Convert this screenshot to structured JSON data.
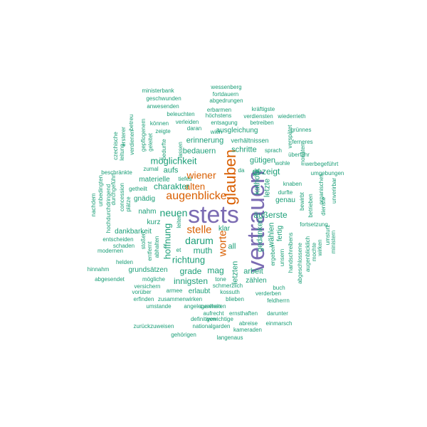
{
  "colors": {
    "primary": "#7b6bb3",
    "secondary": "#d95f02",
    "tertiary": "#1b9e77"
  },
  "words": [
    {
      "text": "stets",
      "color": "primary"
    },
    {
      "text": "vertrauen",
      "color": "primary"
    },
    {
      "text": "glauben",
      "color": "secondary"
    },
    {
      "text": "augenblicke",
      "color": "secondary"
    },
    {
      "text": "stelle",
      "color": "secondary"
    },
    {
      "text": "worte",
      "color": "secondary"
    },
    {
      "text": "wiener",
      "color": "secondary"
    },
    {
      "text": "alten",
      "color": "secondary"
    },
    {
      "text": "neuen",
      "color": "tertiary"
    },
    {
      "text": "hoffnung",
      "color": "tertiary"
    },
    {
      "text": "darum",
      "color": "tertiary"
    },
    {
      "text": "richtung",
      "color": "tertiary"
    },
    {
      "text": "muth",
      "color": "tertiary"
    },
    {
      "text": "charakter",
      "color": "tertiary"
    },
    {
      "text": "möglichkeit",
      "color": "tertiary"
    },
    {
      "text": "gezeigt",
      "color": "tertiary"
    },
    {
      "text": "äußerste",
      "color": "tertiary"
    },
    {
      "text": "innigsten",
      "color": "tertiary"
    },
    {
      "text": "grade",
      "color": "tertiary"
    },
    {
      "text": "mag",
      "color": "tertiary"
    },
    {
      "text": "all",
      "color": "tertiary"
    },
    {
      "text": "letzten",
      "color": "tertiary"
    },
    {
      "text": "gedanken",
      "color": "tertiary"
    },
    {
      "text": "wählen",
      "color": "tertiary"
    },
    {
      "text": "letzte",
      "color": "tertiary"
    },
    {
      "text": "arbeit",
      "color": "tertiary"
    },
    {
      "text": "aufs",
      "color": "tertiary"
    },
    {
      "text": "bedauern",
      "color": "tertiary"
    },
    {
      "text": "erinnerung",
      "color": "tertiary"
    },
    {
      "text": "schritte",
      "color": "tertiary"
    },
    {
      "text": "gütigen",
      "color": "tertiary"
    },
    {
      "text": "katholik",
      "color": "tertiary"
    },
    {
      "text": "genau",
      "color": "tertiary"
    },
    {
      "text": "fertig",
      "color": "tertiary"
    },
    {
      "text": "materielle",
      "color": "tertiary"
    },
    {
      "text": "gnädig",
      "color": "tertiary"
    },
    {
      "text": "nahm",
      "color": "tertiary"
    },
    {
      "text": "kurz",
      "color": "tertiary"
    },
    {
      "text": "dankbarkeit",
      "color": "tertiary"
    },
    {
      "text": "grundsätzen",
      "color": "tertiary"
    },
    {
      "text": "erlaubt",
      "color": "tertiary"
    },
    {
      "text": "zählen",
      "color": "tertiary"
    },
    {
      "text": "klar",
      "color": "tertiary"
    },
    {
      "text": "ausgleichung",
      "color": "tertiary"
    },
    {
      "text": "verhältnissen",
      "color": "tertiary"
    },
    {
      "text": "wessenberg",
      "color": "tertiary"
    },
    {
      "text": "ministerbank",
      "color": "tertiary"
    },
    {
      "text": "fortdauern",
      "color": "tertiary"
    },
    {
      "text": "abgedrungen",
      "color": "tertiary"
    },
    {
      "text": "geschwunden",
      "color": "tertiary"
    },
    {
      "text": "anwesenden",
      "color": "tertiary"
    },
    {
      "text": "erbarmen",
      "color": "tertiary"
    },
    {
      "text": "kräftigste",
      "color": "tertiary"
    },
    {
      "text": "beleuchten",
      "color": "tertiary"
    },
    {
      "text": "höchstens",
      "color": "tertiary"
    },
    {
      "text": "verdiensten",
      "color": "tertiary"
    },
    {
      "text": "wiederrieth",
      "color": "tertiary"
    },
    {
      "text": "betreu",
      "color": "tertiary"
    },
    {
      "text": "können",
      "color": "tertiary"
    },
    {
      "text": "verleiden",
      "color": "tertiary"
    },
    {
      "text": "entsagung",
      "color": "tertiary"
    },
    {
      "text": "betreiben",
      "color": "tertiary"
    },
    {
      "text": "daran",
      "color": "tertiary"
    },
    {
      "text": "zeigte",
      "color": "tertiary"
    },
    {
      "text": "wien",
      "color": "tertiary"
    },
    {
      "text": "grünnes",
      "color": "tertiary"
    },
    {
      "text": "verspätet",
      "color": "tertiary"
    },
    {
      "text": "ferneres",
      "color": "tertiary"
    },
    {
      "text": "sprach",
      "color": "tertiary"
    },
    {
      "text": "wohle",
      "color": "tertiary"
    },
    {
      "text": "überführ",
      "color": "tertiary"
    },
    {
      "text": "werbegeführt",
      "color": "tertiary"
    },
    {
      "text": "umgebungen",
      "color": "tertiary"
    },
    {
      "text": "beschränkte",
      "color": "tertiary"
    },
    {
      "text": "zumal",
      "color": "tertiary"
    },
    {
      "text": "tiefes",
      "color": "tertiary"
    },
    {
      "text": "getheilt",
      "color": "tertiary"
    },
    {
      "text": "knaben",
      "color": "tertiary"
    },
    {
      "text": "durfte",
      "color": "tertiary"
    },
    {
      "text": "bewirbt",
      "color": "tertiary"
    },
    {
      "text": "betrieben",
      "color": "tertiary"
    },
    {
      "text": "organisches",
      "color": "tertiary"
    },
    {
      "text": "dienste",
      "color": "tertiary"
    },
    {
      "text": "unverirbar",
      "color": "tertiary"
    },
    {
      "text": "nachdem",
      "color": "tertiary"
    },
    {
      "text": "entscheiden",
      "color": "tertiary"
    },
    {
      "text": "schaden",
      "color": "tertiary"
    },
    {
      "text": "modernen",
      "color": "tertiary"
    },
    {
      "text": "leiter",
      "color": "tertiary"
    },
    {
      "text": "et",
      "color": "tertiary"
    },
    {
      "text": "fortsetzung",
      "color": "tertiary"
    },
    {
      "text": "augenblicklich",
      "color": "tertiary"
    },
    {
      "text": "abgeschlossene",
      "color": "tertiary"
    },
    {
      "text": "unsern",
      "color": "tertiary"
    },
    {
      "text": "handschreibens",
      "color": "tertiary"
    },
    {
      "text": "ergeben",
      "color": "tertiary"
    },
    {
      "text": "helden",
      "color": "tertiary"
    },
    {
      "text": "hinnahm",
      "color": "tertiary"
    },
    {
      "text": "abgesendet",
      "color": "tertiary"
    },
    {
      "text": "mögliche",
      "color": "tertiary"
    },
    {
      "text": "tone",
      "color": "tertiary"
    },
    {
      "text": "versichern",
      "color": "tertiary"
    },
    {
      "text": "vorüber",
      "color": "tertiary"
    },
    {
      "text": "armee",
      "color": "tertiary"
    },
    {
      "text": "schmerzlich",
      "color": "tertiary"
    },
    {
      "text": "kossuth",
      "color": "tertiary"
    },
    {
      "text": "buch",
      "color": "tertiary"
    },
    {
      "text": "verderben",
      "color": "tertiary"
    },
    {
      "text": "feldherrn",
      "color": "tertiary"
    },
    {
      "text": "erfinden",
      "color": "tertiary"
    },
    {
      "text": "zusammenwirken",
      "color": "tertiary"
    },
    {
      "text": "blieben",
      "color": "tertiary"
    },
    {
      "text": "umstande",
      "color": "tertiary"
    },
    {
      "text": "angelegenheiten",
      "color": "tertiary"
    },
    {
      "text": "zusehen",
      "color": "tertiary"
    },
    {
      "text": "ernsthaften",
      "color": "tertiary"
    },
    {
      "text": "darunter",
      "color": "tertiary"
    },
    {
      "text": "aufrecht",
      "color": "tertiary"
    },
    {
      "text": "definitiven",
      "color": "tertiary"
    },
    {
      "text": "gewichtige",
      "color": "tertiary"
    },
    {
      "text": "zurückzuweisen",
      "color": "tertiary"
    },
    {
      "text": "nationalgarden",
      "color": "tertiary"
    },
    {
      "text": "abreise",
      "color": "tertiary"
    },
    {
      "text": "kameraden",
      "color": "tertiary"
    },
    {
      "text": "einmarsch",
      "color": "tertiary"
    },
    {
      "text": "gehörigen",
      "color": "tertiary"
    },
    {
      "text": "langenaus",
      "color": "tertiary"
    },
    {
      "text": "czechische",
      "color": "tertiary"
    },
    {
      "text": "leitung",
      "color": "tertiary"
    },
    {
      "text": "ersterer",
      "color": "tertiary"
    },
    {
      "text": "verdienen",
      "color": "tertiary"
    },
    {
      "text": "gepflogenem",
      "color": "tertiary"
    },
    {
      "text": "geleitet",
      "color": "tertiary"
    },
    {
      "text": "bedurfte",
      "color": "tertiary"
    },
    {
      "text": "fassen",
      "color": "tertiary"
    },
    {
      "text": "unbedingten",
      "color": "tertiary"
    },
    {
      "text": "durchgeführt",
      "color": "tertiary"
    },
    {
      "text": "hochdurchdringend",
      "color": "tertiary"
    },
    {
      "text": "concession",
      "color": "tertiary"
    },
    {
      "text": "plätze",
      "color": "tertiary"
    },
    {
      "text": "stoßen",
      "color": "tertiary"
    },
    {
      "text": "entfernt",
      "color": "tertiary"
    },
    {
      "text": "abhalten",
      "color": "tertiary"
    },
    {
      "text": "monaten",
      "color": "tertiary"
    },
    {
      "text": "mochte",
      "color": "tertiary"
    },
    {
      "text": "wirken",
      "color": "tertiary"
    },
    {
      "text": "umsturz",
      "color": "tertiary"
    },
    {
      "text": "ministern",
      "color": "tertiary"
    },
    {
      "text": "da",
      "color": "tertiary"
    }
  ]
}
